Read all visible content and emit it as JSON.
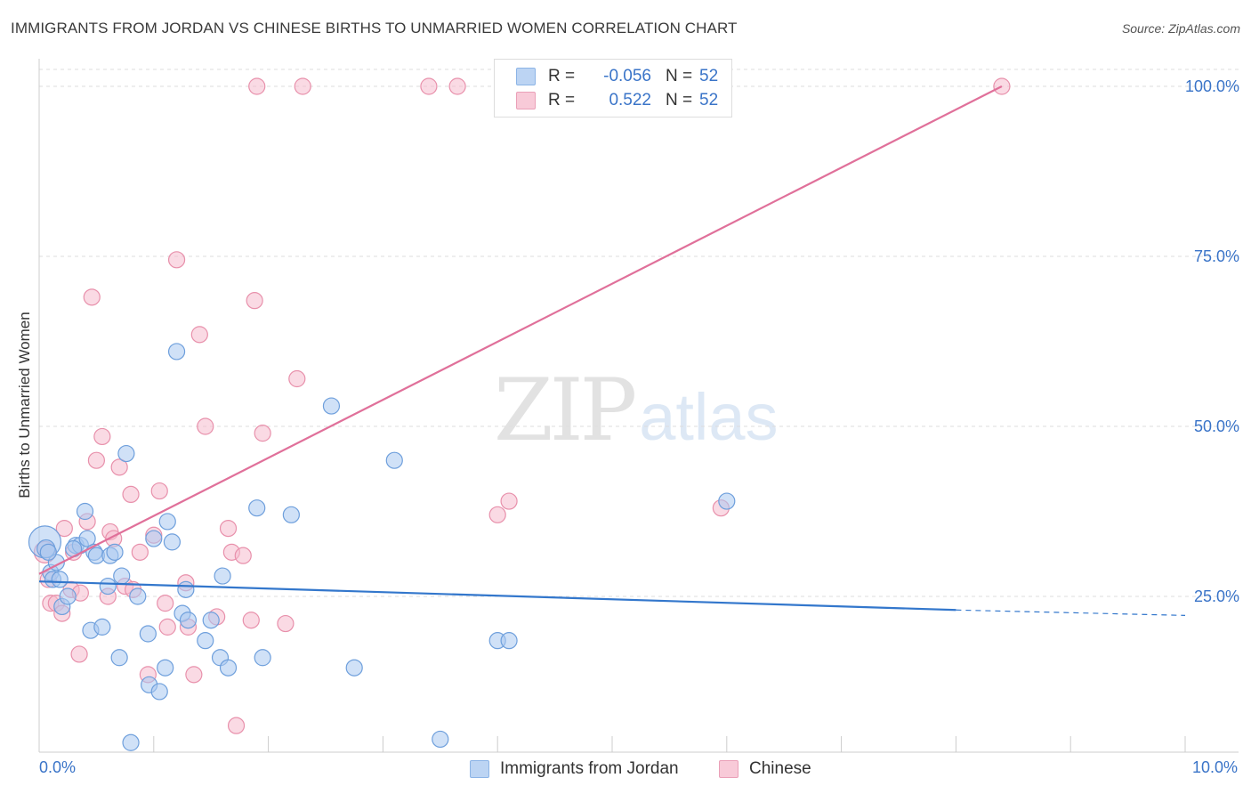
{
  "header": {
    "title": "IMMIGRANTS FROM JORDAN VS CHINESE BIRTHS TO UNMARRIED WOMEN CORRELATION CHART",
    "source": "Source: ZipAtlas.com"
  },
  "watermark": {
    "zip": "ZIP",
    "atlas": "atlas"
  },
  "legend": {
    "rows": [
      {
        "r_label": "R =",
        "r_value": "-0.056",
        "n_label": "N =",
        "n_value": "52"
      },
      {
        "r_label": "R =",
        "r_value": "0.522",
        "n_label": "N =",
        "n_value": "52"
      }
    ]
  },
  "bottom_legend": {
    "series1": "Immigrants from Jordan",
    "series2": "Chinese"
  },
  "colors": {
    "blue_fill": "#a9c8f0",
    "blue_stroke": "#6e9fdc",
    "blue_line": "#3377cc",
    "pink_fill": "#f5bccd",
    "pink_stroke": "#e890ab",
    "pink_line": "#e0709a",
    "tick_text": "#3a74c8",
    "grid": "#dddddd"
  },
  "chart_data": {
    "type": "scatter",
    "title": "IMMIGRANTS FROM JORDAN VS CHINESE BIRTHS TO UNMARRIED WOMEN CORRELATION CHART",
    "xlabel": "",
    "ylabel": "Births to Unmarried Women",
    "xlim": [
      0,
      10
    ],
    "ylim": [
      0,
      102
    ],
    "x_tick_labels": [
      "0.0%",
      "10.0%"
    ],
    "y_ticks": [
      25,
      50,
      75,
      100
    ],
    "y_tick_labels": [
      "25.0%",
      "50.0%",
      "75.0%",
      "100.0%"
    ],
    "grid": true,
    "legend_position": "top-center",
    "series": [
      {
        "name": "Immigrants from Jordan",
        "color": "#a9c8f0",
        "trend": {
          "x1": 0.0,
          "y1": 27.2,
          "x2": 8.0,
          "y2": 23.0,
          "dashed_to_x": 10.0,
          "dashed_to_y": 22.2
        },
        "points": [
          [
            0.05,
            33.0,
            18
          ],
          [
            0.06,
            32.0,
            10
          ],
          [
            0.1,
            28.5,
            9
          ],
          [
            0.12,
            27.5,
            9
          ],
          [
            0.15,
            30.0,
            9
          ],
          [
            0.18,
            27.5,
            9
          ],
          [
            0.2,
            23.5,
            9
          ],
          [
            0.25,
            25.0,
            9
          ],
          [
            0.32,
            32.5,
            9
          ],
          [
            0.36,
            32.5,
            9
          ],
          [
            0.4,
            37.5,
            9
          ],
          [
            0.42,
            33.5,
            9
          ],
          [
            0.45,
            20.0,
            9
          ],
          [
            0.48,
            31.5,
            9
          ],
          [
            0.5,
            31.0,
            9
          ],
          [
            0.55,
            20.5,
            9
          ],
          [
            0.6,
            26.5,
            9
          ],
          [
            0.62,
            31.0,
            9
          ],
          [
            0.66,
            31.5,
            9
          ],
          [
            0.7,
            16.0,
            9
          ],
          [
            0.72,
            28.0,
            9
          ],
          [
            0.76,
            46.0,
            9
          ],
          [
            0.8,
            3.5,
            9
          ],
          [
            0.86,
            25.0,
            9
          ],
          [
            0.95,
            19.5,
            9
          ],
          [
            0.96,
            12.0,
            9
          ],
          [
            1.0,
            33.5,
            9
          ],
          [
            1.05,
            11.0,
            9
          ],
          [
            1.1,
            14.5,
            9
          ],
          [
            1.12,
            36.0,
            9
          ],
          [
            1.16,
            33.0,
            9
          ],
          [
            1.2,
            61.0,
            9
          ],
          [
            1.25,
            22.5,
            9
          ],
          [
            1.28,
            26.0,
            9
          ],
          [
            1.3,
            21.5,
            9
          ],
          [
            1.45,
            18.5,
            9
          ],
          [
            1.5,
            21.5,
            9
          ],
          [
            1.58,
            16.0,
            9
          ],
          [
            1.6,
            28.0,
            9
          ],
          [
            1.65,
            14.5,
            9
          ],
          [
            1.9,
            38.0,
            9
          ],
          [
            1.95,
            16.0,
            9
          ],
          [
            2.2,
            37.0,
            9
          ],
          [
            2.55,
            53.0,
            9
          ],
          [
            2.75,
            14.5,
            9
          ],
          [
            3.1,
            45.0,
            9
          ],
          [
            3.5,
            4.0,
            9
          ],
          [
            4.0,
            18.5,
            9
          ],
          [
            4.1,
            18.5,
            9
          ],
          [
            6.0,
            39.0,
            9
          ],
          [
            0.08,
            31.5,
            9
          ],
          [
            0.3,
            32.0,
            9
          ]
        ]
      },
      {
        "name": "Chinese",
        "color": "#f5bccd",
        "trend": {
          "x1": 0.0,
          "y1": 28.3,
          "x2": 8.4,
          "y2": 100.0
        },
        "points": [
          [
            0.05,
            31.5,
            12
          ],
          [
            0.08,
            27.5,
            9
          ],
          [
            0.1,
            24.0,
            9
          ],
          [
            0.15,
            24.0,
            9
          ],
          [
            0.2,
            22.5,
            9
          ],
          [
            0.22,
            35.0,
            9
          ],
          [
            0.28,
            26.0,
            9
          ],
          [
            0.3,
            31.5,
            9
          ],
          [
            0.35,
            16.5,
            9
          ],
          [
            0.36,
            25.5,
            9
          ],
          [
            0.42,
            36.0,
            9
          ],
          [
            0.46,
            69.0,
            9
          ],
          [
            0.5,
            45.0,
            9
          ],
          [
            0.55,
            48.5,
            9
          ],
          [
            0.6,
            25.0,
            9
          ],
          [
            0.62,
            34.5,
            9
          ],
          [
            0.65,
            33.5,
            9
          ],
          [
            0.7,
            44.0,
            9
          ],
          [
            0.75,
            26.5,
            9
          ],
          [
            0.8,
            40.0,
            9
          ],
          [
            0.82,
            26.0,
            9
          ],
          [
            0.88,
            31.5,
            9
          ],
          [
            0.95,
            13.5,
            9
          ],
          [
            1.0,
            34.0,
            9
          ],
          [
            1.05,
            40.5,
            9
          ],
          [
            1.1,
            24.0,
            9
          ],
          [
            1.12,
            20.5,
            9
          ],
          [
            1.2,
            74.5,
            9
          ],
          [
            1.28,
            27.0,
            9
          ],
          [
            1.3,
            20.5,
            9
          ],
          [
            1.35,
            13.5,
            9
          ],
          [
            1.4,
            63.5,
            9
          ],
          [
            1.45,
            50.0,
            9
          ],
          [
            1.55,
            22.0,
            9
          ],
          [
            1.65,
            35.0,
            9
          ],
          [
            1.68,
            31.5,
            9
          ],
          [
            1.72,
            6.0,
            9
          ],
          [
            1.78,
            31.0,
            9
          ],
          [
            1.85,
            21.5,
            9
          ],
          [
            1.88,
            68.5,
            9
          ],
          [
            1.9,
            100.0,
            9
          ],
          [
            1.95,
            49.0,
            9
          ],
          [
            2.15,
            21.0,
            9
          ],
          [
            2.25,
            57.0,
            9
          ],
          [
            2.3,
            100.0,
            9
          ],
          [
            3.4,
            100.0,
            9
          ],
          [
            3.65,
            100.0,
            9
          ],
          [
            4.0,
            37.0,
            9
          ],
          [
            4.1,
            39.0,
            9
          ],
          [
            4.6,
            100.0,
            9
          ],
          [
            5.95,
            38.0,
            9
          ],
          [
            8.4,
            100.0,
            9
          ]
        ]
      }
    ]
  }
}
